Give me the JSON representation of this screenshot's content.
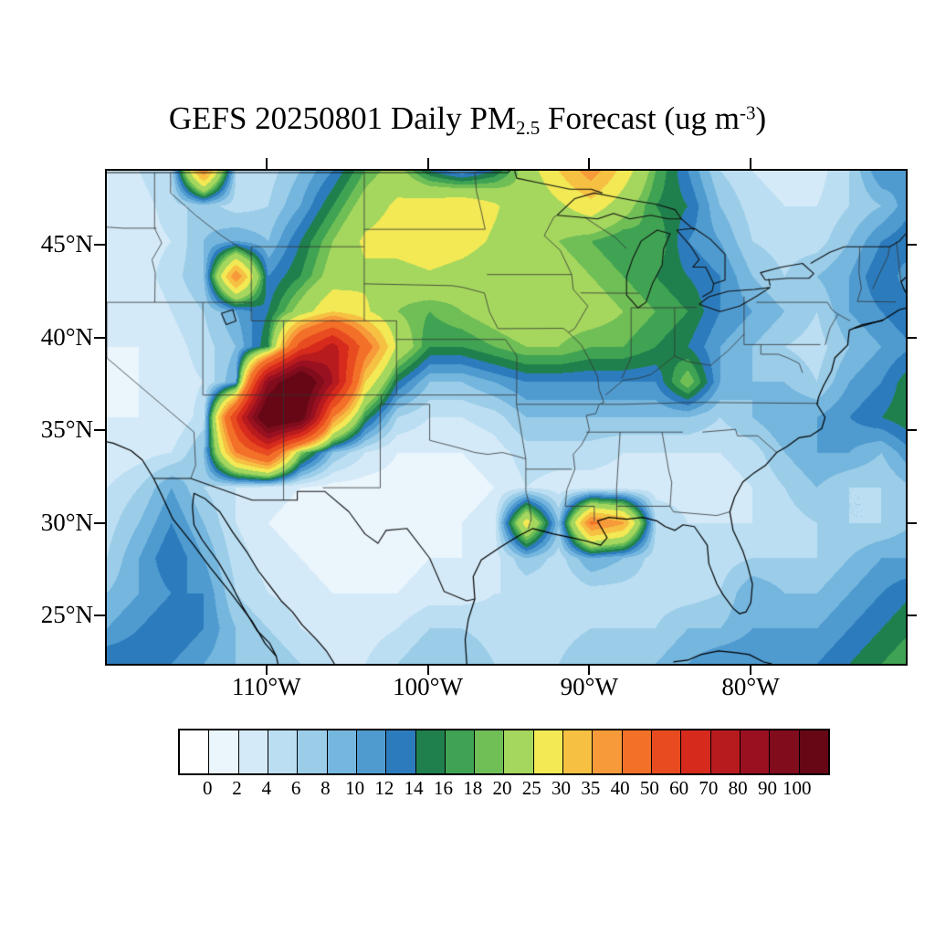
{
  "title": {
    "prefix": "GEFS 20250801 Daily PM",
    "subscript": "2.5",
    "middle": " Forecast (ug m",
    "superscript": "-3",
    "suffix": ")"
  },
  "map": {
    "lat_ticks": [
      {
        "label": "45°N",
        "lat": 45
      },
      {
        "label": "40°N",
        "lat": 40
      },
      {
        "label": "35°N",
        "lat": 35
      },
      {
        "label": "30°N",
        "lat": 30
      },
      {
        "label": "25°N",
        "lat": 25
      }
    ],
    "lon_ticks": [
      {
        "label": "110°W",
        "lon": -110
      },
      {
        "label": "100°W",
        "lon": -100
      },
      {
        "label": "90°W",
        "lon": -90
      },
      {
        "label": "80°W",
        "lon": -80
      }
    ]
  },
  "chart_data": {
    "type": "heatmap",
    "title": "GEFS 20250801 Daily PM2.5 Forecast (ug m-3)",
    "variable": "PM2.5",
    "units": "ug m-3",
    "legend_position": "bottom",
    "levels": [
      0,
      2,
      4,
      6,
      8,
      10,
      12,
      14,
      16,
      18,
      20,
      25,
      30,
      35,
      40,
      50,
      60,
      70,
      80,
      90,
      100
    ],
    "palette": [
      "#ffffff",
      "#eaf5fc",
      "#d5eaf8",
      "#bbdef2",
      "#9bcde9",
      "#75b6de",
      "#4f9bd0",
      "#2c7cbd",
      "#20804d",
      "#3fa353",
      "#6fbe56",
      "#a5d75e",
      "#f2e955",
      "#f6c143",
      "#f79a3a",
      "#f37029",
      "#e84b20",
      "#d62a1d",
      "#b81b1e",
      "#991120",
      "#800c1c",
      "#670716"
    ],
    "lon_range": [
      -120,
      -70.5
    ],
    "lat_range": [
      22.5,
      49.1
    ],
    "grid_lons": [
      -120,
      -118,
      -116,
      -114,
      -112,
      -110,
      -108,
      -106,
      -104,
      -102,
      -100,
      -98,
      -96,
      -94,
      -92,
      -90,
      -88,
      -86,
      -84,
      -82,
      -80,
      -78,
      -76,
      -74,
      -72,
      -70
    ],
    "grid_lats": [
      49.1,
      47.2,
      45.3,
      43.4,
      41.5,
      39.6,
      37.7,
      35.8,
      33.9,
      32.0,
      30.1,
      28.2,
      26.3,
      24.4,
      22.5
    ],
    "values_ugm3": [
      [
        3,
        4,
        6,
        40,
        6,
        5,
        8,
        12,
        18,
        22,
        14,
        10,
        14,
        22,
        30,
        38,
        28,
        18,
        12,
        6,
        4,
        3,
        3,
        6,
        12,
        10
      ],
      [
        2,
        3,
        5,
        7,
        5,
        6,
        10,
        16,
        22,
        26,
        28,
        30,
        26,
        20,
        24,
        28,
        22,
        16,
        14,
        8,
        5,
        4,
        4,
        6,
        8,
        12
      ],
      [
        2,
        3,
        4,
        8,
        10,
        8,
        14,
        20,
        26,
        28,
        30,
        28,
        24,
        22,
        20,
        18,
        16,
        18,
        12,
        10,
        6,
        5,
        5,
        8,
        12,
        14
      ],
      [
        2,
        3,
        5,
        8,
        40,
        12,
        16,
        22,
        24,
        22,
        24,
        22,
        20,
        24,
        22,
        20,
        18,
        16,
        14,
        12,
        8,
        6,
        8,
        10,
        14,
        10
      ],
      [
        3,
        2,
        4,
        6,
        10,
        14,
        22,
        30,
        26,
        20,
        18,
        20,
        22,
        24,
        22,
        22,
        20,
        18,
        16,
        12,
        10,
        8,
        6,
        10,
        12,
        14
      ],
      [
        2,
        2,
        3,
        5,
        8,
        16,
        55,
        75,
        45,
        24,
        16,
        16,
        18,
        20,
        20,
        18,
        18,
        16,
        14,
        10,
        8,
        6,
        5,
        8,
        10,
        12
      ],
      [
        2,
        2,
        3,
        4,
        10,
        90,
        120,
        80,
        30,
        14,
        8,
        8,
        10,
        12,
        12,
        12,
        12,
        12,
        20,
        10,
        8,
        8,
        6,
        10,
        12,
        16
      ],
      [
        2,
        2,
        2,
        5,
        60,
        120,
        110,
        40,
        16,
        6,
        4,
        4,
        5,
        8,
        8,
        8,
        8,
        8,
        8,
        6,
        8,
        10,
        10,
        12,
        14,
        16
      ],
      [
        2,
        3,
        4,
        8,
        40,
        55,
        20,
        8,
        4,
        2,
        2,
        2,
        3,
        5,
        5,
        5,
        4,
        4,
        4,
        4,
        5,
        8,
        10,
        10,
        8,
        12
      ],
      [
        4,
        6,
        10,
        6,
        4,
        3,
        2,
        1,
        1,
        1,
        1,
        1,
        2,
        4,
        3,
        3,
        3,
        3,
        3,
        3,
        4,
        6,
        8,
        6,
        6,
        8
      ],
      [
        5,
        8,
        12,
        8,
        4,
        2,
        1,
        1,
        1,
        1,
        1,
        2,
        3,
        28,
        8,
        42,
        36,
        6,
        4,
        4,
        4,
        5,
        6,
        6,
        6,
        8
      ],
      [
        6,
        10,
        14,
        10,
        5,
        3,
        2,
        1,
        1,
        1,
        2,
        2,
        3,
        8,
        5,
        10,
        8,
        5,
        4,
        5,
        6,
        6,
        6,
        8,
        10,
        10
      ],
      [
        8,
        10,
        12,
        12,
        6,
        4,
        3,
        2,
        2,
        2,
        3,
        3,
        4,
        4,
        4,
        5,
        5,
        5,
        5,
        6,
        10,
        8,
        8,
        10,
        12,
        14
      ],
      [
        10,
        12,
        14,
        12,
        8,
        6,
        4,
        3,
        3,
        4,
        6,
        6,
        5,
        5,
        5,
        6,
        6,
        6,
        8,
        8,
        10,
        10,
        10,
        12,
        14,
        16
      ],
      [
        14,
        14,
        12,
        10,
        8,
        8,
        6,
        4,
        4,
        6,
        8,
        8,
        6,
        6,
        6,
        8,
        8,
        8,
        10,
        12,
        12,
        12,
        12,
        14,
        16,
        18
      ]
    ]
  }
}
